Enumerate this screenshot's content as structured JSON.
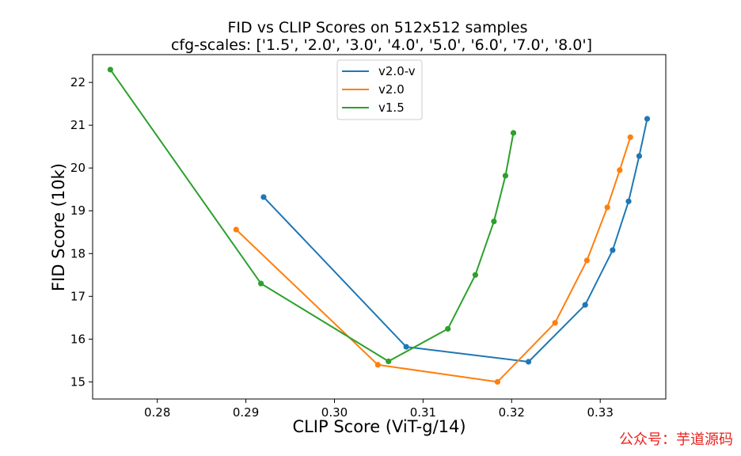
{
  "chart_data": {
    "type": "line",
    "title": "FID vs CLIP Scores on 512x512 samples",
    "subtitle": "cfg-scales: ['1.5', '2.0', '3.0', '4.0', '5.0', '6.0', '7.0', '8.0']",
    "xlabel": "CLIP Score (ViT-g/14)",
    "ylabel": "FID Score (10k)",
    "xlim": [
      0.2727,
      0.3374
    ],
    "ylim": [
      14.6,
      22.65
    ],
    "xticks": [
      0.28,
      0.29,
      0.3,
      0.31,
      0.32,
      0.33
    ],
    "xtick_labels": [
      "0.28",
      "0.29",
      "0.30",
      "0.31",
      "0.32",
      "0.33"
    ],
    "yticks": [
      15,
      16,
      17,
      18,
      19,
      20,
      21,
      22
    ],
    "ytick_labels": [
      "15",
      "16",
      "17",
      "18",
      "19",
      "20",
      "21",
      "22"
    ],
    "grid": false,
    "legend_position": "top-center",
    "series": [
      {
        "name": "v2.0-v",
        "color": "#1f77b4",
        "x": [
          0.292,
          0.3081,
          0.3219,
          0.3283,
          0.3314,
          0.3332,
          0.3344,
          0.3353
        ],
        "y": [
          19.32,
          15.82,
          15.47,
          16.8,
          18.08,
          19.22,
          20.28,
          21.15
        ]
      },
      {
        "name": "v2.0",
        "color": "#ff7f0e",
        "x": [
          0.2889,
          0.3049,
          0.3184,
          0.3249,
          0.3285,
          0.3308,
          0.3322,
          0.3334
        ],
        "y": [
          18.56,
          15.4,
          15.0,
          16.38,
          17.84,
          19.08,
          19.95,
          20.72
        ]
      },
      {
        "name": "v1.5",
        "color": "#2ca02c",
        "x": [
          0.2747,
          0.2917,
          0.3061,
          0.3128,
          0.3159,
          0.318,
          0.3193,
          0.3202
        ],
        "y": [
          22.3,
          17.3,
          15.48,
          16.24,
          17.5,
          18.75,
          19.82,
          20.82
        ]
      }
    ]
  },
  "watermark": "公众号：芋道源码"
}
